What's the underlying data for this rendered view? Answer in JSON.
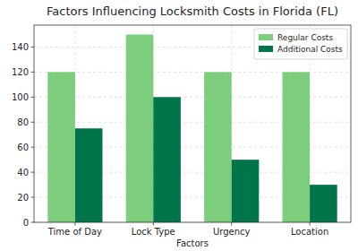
{
  "chart_data": {
    "type": "bar",
    "title": "Factors Influencing Locksmith Costs in Florida (FL)",
    "x_label": "Factors",
    "categories": [
      "Time of Day",
      "Lock Type",
      "Urgency",
      "Location"
    ],
    "series": [
      {
        "name": "Regular Costs",
        "color": "#7ccd7c",
        "values": [
          120,
          150,
          120,
          120
        ]
      },
      {
        "name": "Additional Costs",
        "color": "#00754a",
        "values": [
          75,
          100,
          50,
          30
        ]
      }
    ],
    "ylim": [
      0,
      157.5
    ],
    "yticks": [
      0,
      20,
      40,
      60,
      80,
      100,
      120,
      140
    ],
    "grid": true,
    "legend": "upper right"
  }
}
